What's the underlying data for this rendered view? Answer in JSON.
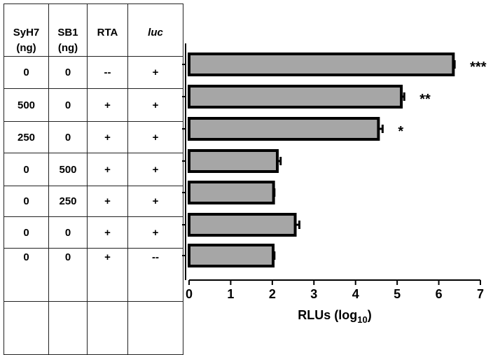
{
  "table": {
    "headers": [
      "SyH7\n(ng)",
      "SB1\n(ng)",
      "RTA",
      "luc"
    ],
    "rows": [
      [
        "0",
        "0",
        "--",
        "+"
      ],
      [
        "500",
        "0",
        "+",
        "+"
      ],
      [
        "250",
        "0",
        "+",
        "+"
      ],
      [
        "0",
        "500",
        "+",
        "+"
      ],
      [
        "0",
        "250",
        "+",
        "+"
      ],
      [
        "0",
        "0",
        "+",
        "+"
      ],
      [
        "0",
        "0",
        "+",
        "--"
      ]
    ]
  },
  "chart_data": {
    "type": "bar",
    "orientation": "horizontal",
    "xlabel_main": "RLUs (log",
    "xlabel_sub": "10",
    "xlabel_close": ")",
    "xlim": [
      0,
      7
    ],
    "xticks": [
      "0",
      "1",
      "2",
      "3",
      "4",
      "5",
      "6",
      "7"
    ],
    "values": [
      6.35,
      5.1,
      4.55,
      2.12,
      2.03,
      2.55,
      2.02
    ],
    "errors": [
      0.03,
      0.07,
      0.1,
      0.08,
      0.02,
      0.1,
      0.03
    ],
    "significance": [
      "***",
      "**",
      "*",
      "",
      "",
      "",
      ""
    ],
    "bar_color": "#a6a6a6",
    "grid": false
  }
}
